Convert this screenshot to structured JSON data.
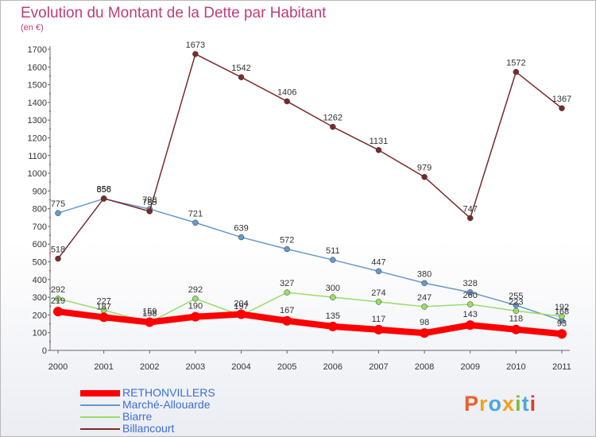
{
  "title": "Evolution du Montant de la Dette par Habitant",
  "subtitle": "(en €)",
  "logo": {
    "text": "Proxiti",
    "colors": [
      "#e8622a",
      "#f0a21d",
      "#49a9dd",
      "#f0a21d",
      "#7bbf2e",
      "#49a9dd",
      "#e23b2e"
    ]
  },
  "chart_data": {
    "type": "line",
    "x": [
      "2000",
      "2001",
      "2002",
      "2003",
      "2004",
      "2005",
      "2006",
      "2007",
      "2008",
      "2009",
      "2010",
      "2011"
    ],
    "ylim": [
      0,
      1700
    ],
    "yticks": [
      0,
      100,
      200,
      300,
      400,
      500,
      600,
      700,
      800,
      900,
      1000,
      1100,
      1200,
      1300,
      1400,
      1500,
      1600,
      1700
    ],
    "grid": false,
    "legend": "bottom-left",
    "series": [
      {
        "name": "RETHONVILLERS",
        "color": "#ff0000",
        "text_color": "#3a6ed8",
        "values": [
          219,
          187,
          159,
          190,
          204,
          167,
          135,
          117,
          98,
          143,
          118,
          93
        ]
      },
      {
        "name": "Marché-Allouarde",
        "color": "#6699cc",
        "text_color": "#3a6ed8",
        "values": [
          775,
          856,
          798,
          721,
          639,
          572,
          511,
          447,
          380,
          328,
          255,
          168
        ]
      },
      {
        "name": "Biarre",
        "color": "#99dd66",
        "text_color": "#3a6ed8",
        "values": [
          292,
          227,
          158,
          292,
          197,
          327,
          300,
          274,
          247,
          260,
          223,
          192
        ]
      },
      {
        "name": "Billancourt",
        "color": "#7a2a2a",
        "text_color": "#3a6ed8",
        "values": [
          518,
          858,
          785,
          1673,
          1542,
          1406,
          1262,
          1131,
          979,
          747,
          1572,
          1367
        ]
      }
    ]
  }
}
